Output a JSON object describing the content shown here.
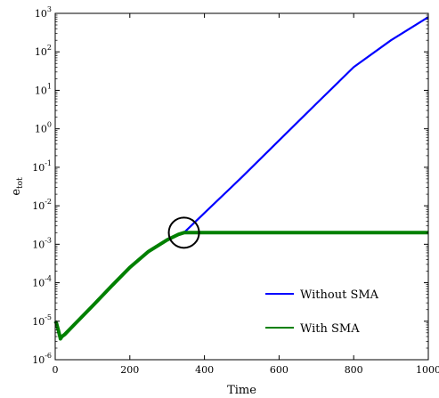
{
  "chart_data": {
    "type": "line",
    "xlabel": "Time",
    "ylabel": "e",
    "ylabel_sub": "tot",
    "xlim": [
      0,
      1000
    ],
    "ylim": [
      1e-06,
      1000
    ],
    "yscale": "log",
    "grid": false,
    "legend_placement": "bottom-right",
    "x_ticks": [
      "0",
      "200",
      "400",
      "600",
      "800",
      "1000"
    ],
    "y_ticks": [
      {
        "base": "10",
        "exp": "3"
      },
      {
        "base": "10",
        "exp": "2"
      },
      {
        "base": "10",
        "exp": "1"
      },
      {
        "base": "10",
        "exp": "0"
      },
      {
        "base": "10",
        "exp": "-1"
      },
      {
        "base": "10",
        "exp": "-2"
      },
      {
        "base": "10",
        "exp": "-3"
      },
      {
        "base": "10",
        "exp": "-4"
      },
      {
        "base": "10",
        "exp": "-5"
      },
      {
        "base": "10",
        "exp": "-6"
      }
    ],
    "series": [
      {
        "name": "Without SMA",
        "color": "#0000ff",
        "x": [
          0,
          3,
          8,
          14,
          18,
          25,
          50,
          100,
          150,
          200,
          250,
          300,
          330,
          345,
          400,
          500,
          600,
          700,
          800,
          900,
          1000
        ],
        "y": [
          1e-05,
          9e-06,
          6e-06,
          3.5e-06,
          4e-06,
          4.5e-06,
          8e-06,
          2.5e-05,
          8e-05,
          0.00025,
          0.00065,
          0.0013,
          0.0018,
          0.002,
          0.0065,
          0.055,
          0.5,
          4.5,
          40,
          200,
          800
        ]
      },
      {
        "name": "With SMA",
        "color": "#008000",
        "x": [
          0,
          3,
          8,
          14,
          18,
          25,
          50,
          100,
          150,
          200,
          250,
          300,
          330,
          345,
          1000
        ],
        "y": [
          1e-05,
          9e-06,
          6e-06,
          3.5e-06,
          4e-06,
          4.5e-06,
          8e-06,
          2.5e-05,
          8e-05,
          0.00025,
          0.00065,
          0.0013,
          0.0018,
          0.002,
          0.002
        ]
      }
    ],
    "annotation": {
      "type": "circle",
      "x": 345,
      "y": 0.002
    }
  }
}
